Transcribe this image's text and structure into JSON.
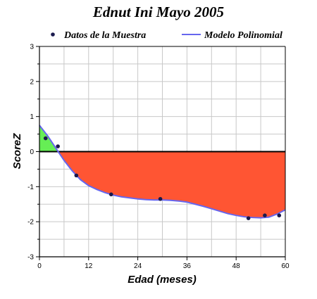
{
  "chart_data": {
    "type": "scatter",
    "title": "Ednut Ini Mayo 2005",
    "xlabel": "Edad (meses)",
    "ylabel": "ScoreZ",
    "xlim": [
      0,
      60
    ],
    "ylim": [
      -3,
      3
    ],
    "x_ticks": [
      "0",
      "12",
      "24",
      "36",
      "48",
      "60"
    ],
    "y_ticks": [
      "3",
      "2",
      "1",
      "0",
      "-1",
      "-2",
      "-3"
    ],
    "x_ticks_values": [
      0,
      12,
      24,
      36,
      48,
      60
    ],
    "y_ticks_values": [
      3,
      2,
      1,
      0,
      -1,
      -2,
      -3
    ],
    "grid": true,
    "legend_position": "top",
    "colors": {
      "points": "#1a1a4d",
      "model_line": "#6666ee",
      "fill_above": "#66ee55",
      "fill_below": "#ff5533",
      "zero_line": "#000000",
      "grid": "#c8c8c8"
    },
    "series": [
      {
        "name": "Datos de la Muestra",
        "kind": "scatter",
        "x": [
          1.5,
          4.5,
          9,
          17.5,
          29.5,
          51,
          55,
          58.5
        ],
        "y": [
          0.38,
          0.15,
          -0.68,
          -1.22,
          -1.35,
          -1.9,
          -1.82,
          -1.82
        ]
      },
      {
        "name": "Modelo Polinomial",
        "kind": "line",
        "x": [
          0,
          2,
          4,
          6,
          8,
          10,
          12,
          14,
          16,
          18,
          20,
          22,
          24,
          26,
          28,
          30,
          32,
          34,
          36,
          38,
          40,
          42,
          44,
          46,
          48,
          50,
          52,
          54,
          56,
          58,
          60
        ],
        "y": [
          0.75,
          0.45,
          0.1,
          -0.25,
          -0.55,
          -0.8,
          -0.97,
          -1.08,
          -1.17,
          -1.24,
          -1.29,
          -1.32,
          -1.35,
          -1.37,
          -1.38,
          -1.38,
          -1.39,
          -1.41,
          -1.44,
          -1.5,
          -1.56,
          -1.63,
          -1.7,
          -1.77,
          -1.82,
          -1.86,
          -1.88,
          -1.89,
          -1.87,
          -1.78,
          -1.66
        ]
      }
    ]
  }
}
